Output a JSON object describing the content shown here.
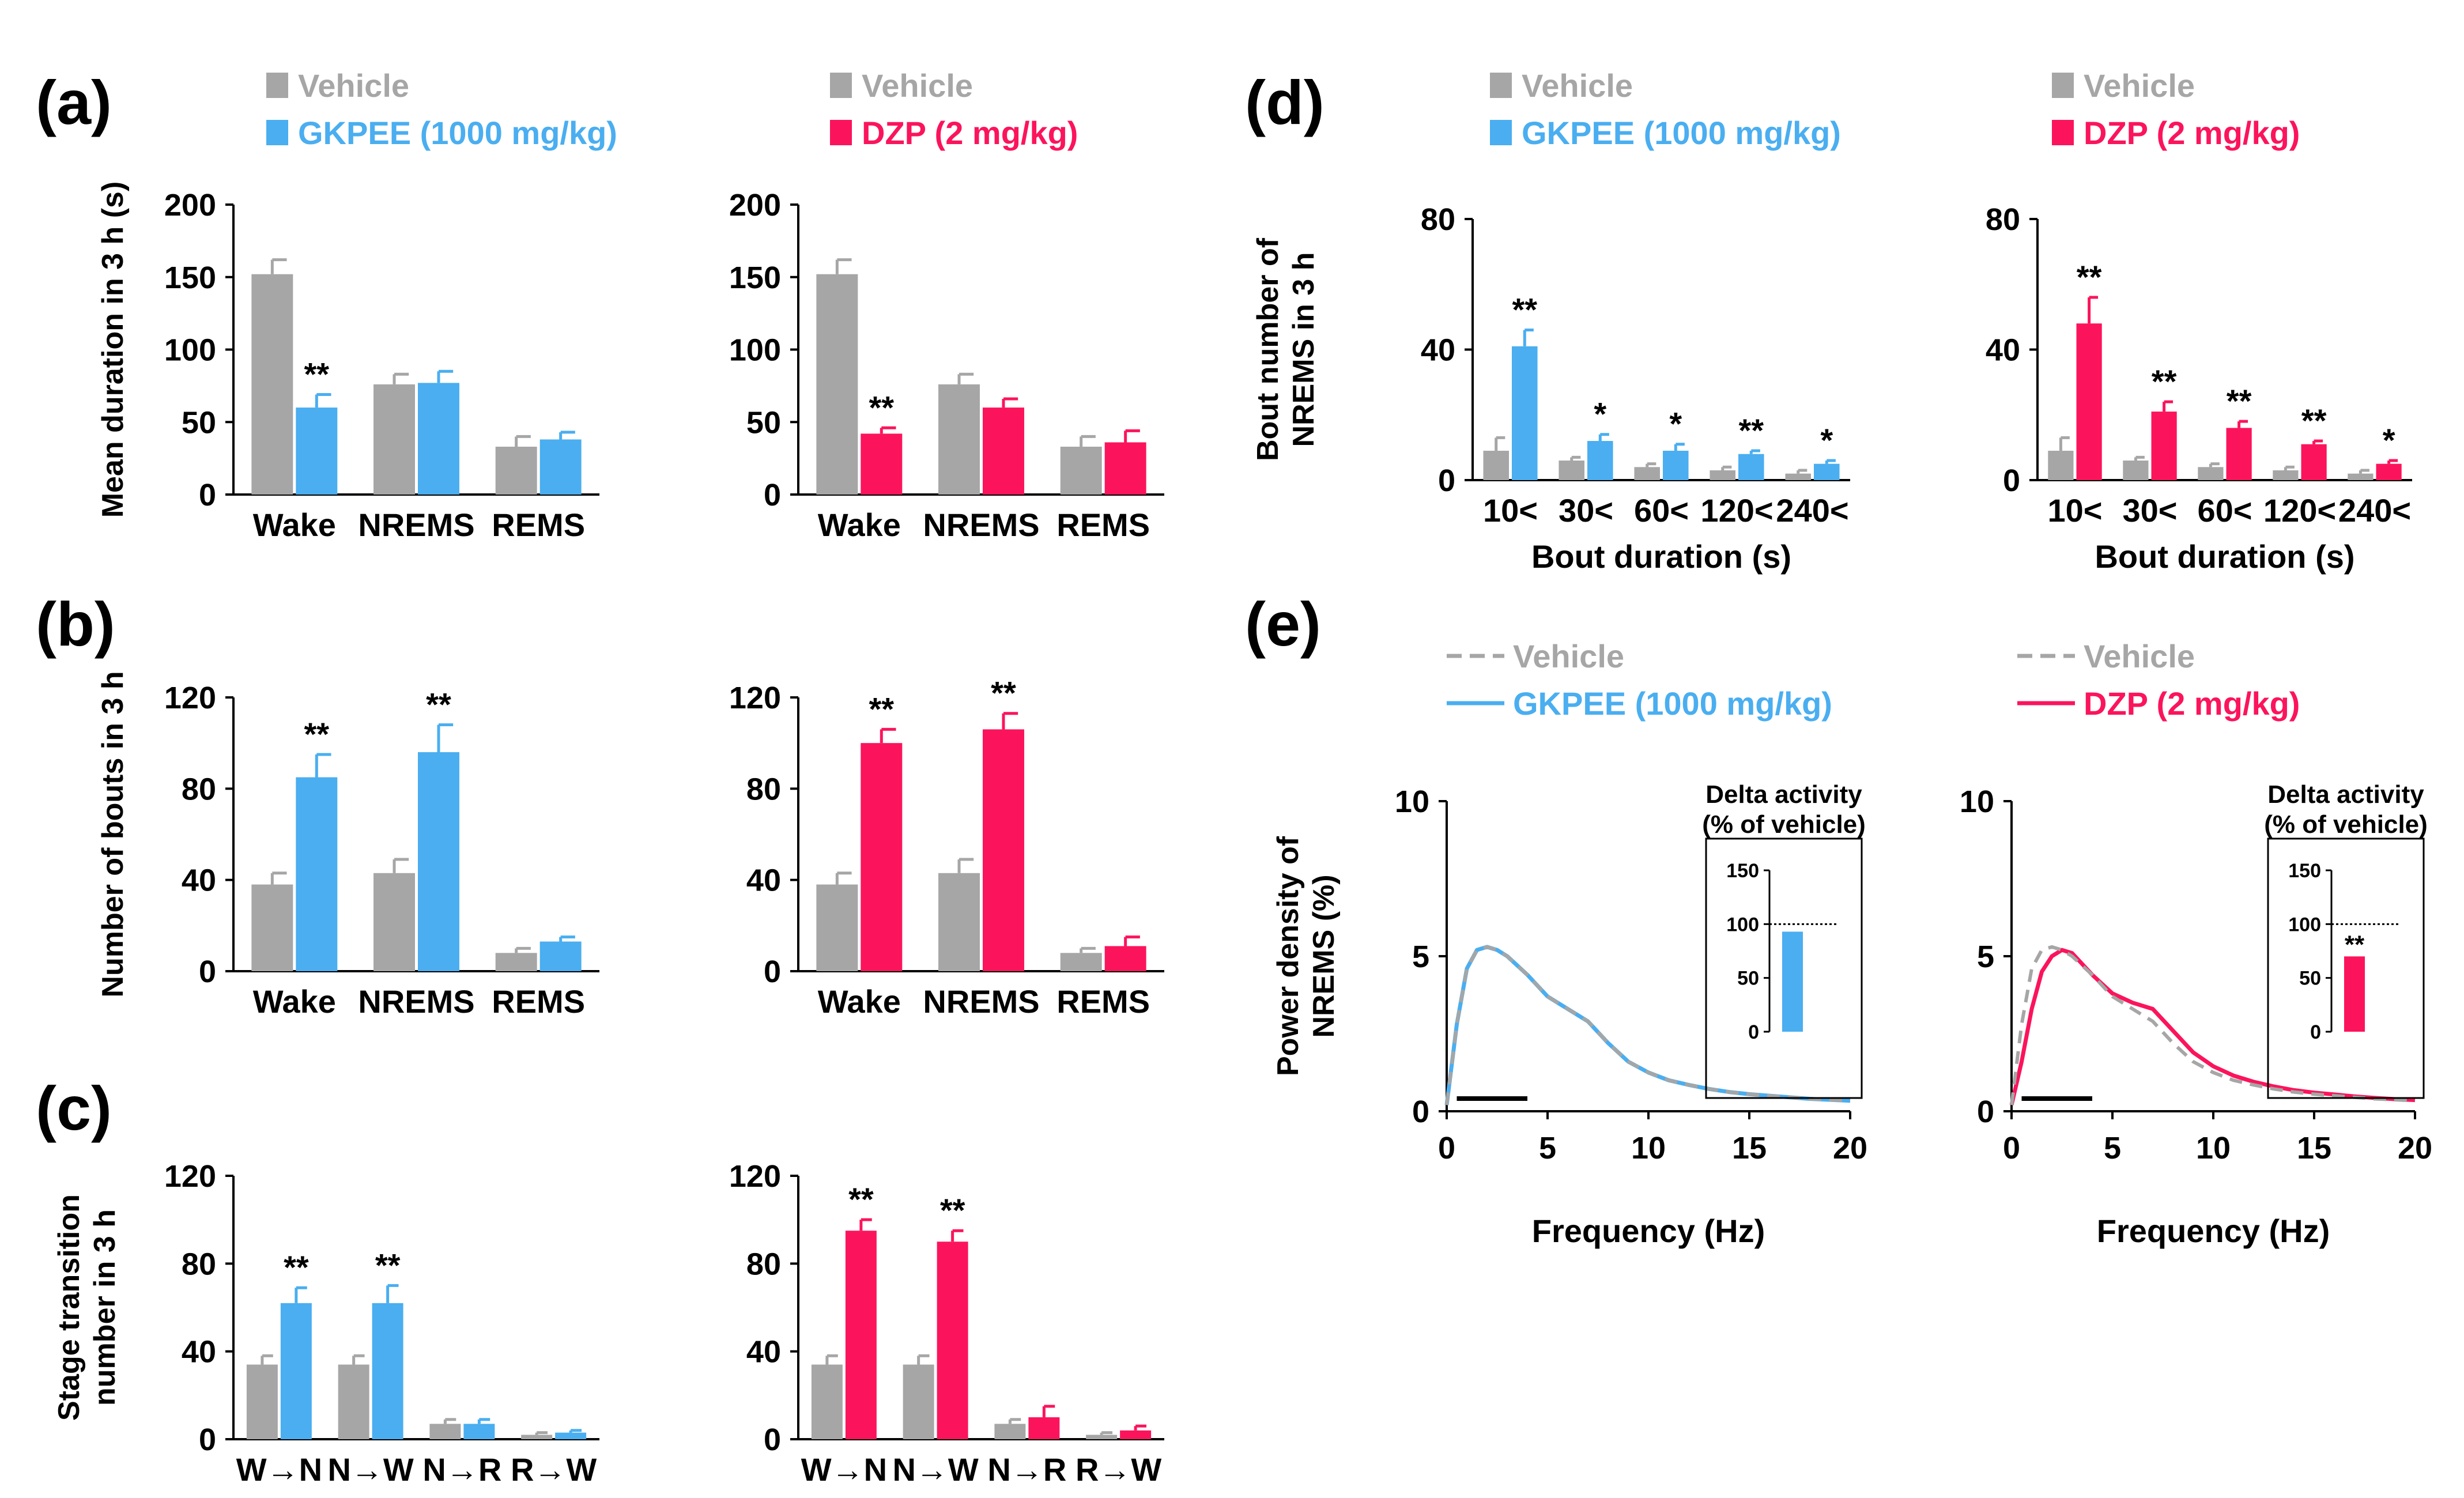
{
  "colors": {
    "vehicle": "#a6a6a6",
    "gkpee": "#4aaef0",
    "dzp": "#fb145c",
    "text": "#000000"
  },
  "panel_labels": {
    "a": "(a)",
    "b": "(b)",
    "c": "(c)",
    "d": "(d)",
    "e": "(e)"
  },
  "legend": {
    "vehicle": "Vehicle",
    "gkpee": "GKPEE (1000 mg/kg)",
    "dzp": "DZP (2 mg/kg)"
  },
  "chart_data": [
    {
      "id": "a_left",
      "type": "bar",
      "panel": "(a)",
      "ylabel": "Mean duration in 3 h (s)",
      "xlabel": "",
      "ylim": [
        0,
        200
      ],
      "yticks": [
        0,
        50,
        100,
        150,
        200
      ],
      "categories": [
        "Wake",
        "NREMS",
        "REMS"
      ],
      "series": [
        {
          "name": "Vehicle",
          "color": "vehicle",
          "values": [
            152,
            76,
            33
          ],
          "errors": [
            10,
            7,
            7
          ]
        },
        {
          "name": "GKPEE (1000 mg/kg)",
          "color": "gkpee",
          "values": [
            60,
            77,
            38
          ],
          "errors": [
            9,
            8,
            5
          ]
        }
      ],
      "annotations": [
        "**",
        "",
        ""
      ]
    },
    {
      "id": "a_right",
      "type": "bar",
      "panel": "(a)",
      "ylabel": "",
      "xlabel": "",
      "ylim": [
        0,
        200
      ],
      "yticks": [
        0,
        50,
        100,
        150,
        200
      ],
      "categories": [
        "Wake",
        "NREMS",
        "REMS"
      ],
      "series": [
        {
          "name": "Vehicle",
          "color": "vehicle",
          "values": [
            152,
            76,
            33
          ],
          "errors": [
            10,
            7,
            7
          ]
        },
        {
          "name": "DZP (2 mg/kg)",
          "color": "dzp",
          "values": [
            42,
            60,
            36
          ],
          "errors": [
            4,
            6,
            8
          ]
        }
      ],
      "annotations": [
        "**",
        "",
        ""
      ]
    },
    {
      "id": "b_left",
      "type": "bar",
      "panel": "(b)",
      "ylabel": "Number of bouts in 3 h",
      "xlabel": "",
      "ylim": [
        0,
        120
      ],
      "yticks": [
        0,
        40,
        80,
        120
      ],
      "categories": [
        "Wake",
        "NREMS",
        "REMS"
      ],
      "series": [
        {
          "name": "Vehicle",
          "color": "vehicle",
          "values": [
            38,
            43,
            8
          ],
          "errors": [
            5,
            6,
            2
          ]
        },
        {
          "name": "GKPEE (1000 mg/kg)",
          "color": "gkpee",
          "values": [
            85,
            96,
            13
          ],
          "errors": [
            10,
            12,
            2
          ]
        }
      ],
      "annotations": [
        "**",
        "**",
        ""
      ]
    },
    {
      "id": "b_right",
      "type": "bar",
      "panel": "(b)",
      "ylabel": "",
      "xlabel": "",
      "ylim": [
        0,
        120
      ],
      "yticks": [
        0,
        40,
        80,
        120
      ],
      "categories": [
        "Wake",
        "NREMS",
        "REMS"
      ],
      "series": [
        {
          "name": "Vehicle",
          "color": "vehicle",
          "values": [
            38,
            43,
            8
          ],
          "errors": [
            5,
            6,
            2
          ]
        },
        {
          "name": "DZP (2 mg/kg)",
          "color": "dzp",
          "values": [
            100,
            106,
            11
          ],
          "errors": [
            6,
            7,
            4
          ]
        }
      ],
      "annotations": [
        "**",
        "**",
        ""
      ]
    },
    {
      "id": "c_left",
      "type": "bar",
      "panel": "(c)",
      "ylabel": "Stage transition|number in 3 h",
      "xlabel": "",
      "ylim": [
        0,
        120
      ],
      "yticks": [
        0,
        40,
        80,
        120
      ],
      "categories": [
        "W→N",
        "N→W",
        "N→R",
        "R→W"
      ],
      "series": [
        {
          "name": "Vehicle",
          "color": "vehicle",
          "values": [
            34,
            34,
            7,
            2
          ],
          "errors": [
            4,
            4,
            2,
            1
          ]
        },
        {
          "name": "GKPEE (1000 mg/kg)",
          "color": "gkpee",
          "values": [
            62,
            62,
            7,
            3
          ],
          "errors": [
            7,
            8,
            2,
            1
          ]
        }
      ],
      "annotations": [
        "**",
        "**",
        "",
        ""
      ]
    },
    {
      "id": "c_right",
      "type": "bar",
      "panel": "(c)",
      "ylabel": "",
      "xlabel": "",
      "ylim": [
        0,
        120
      ],
      "yticks": [
        0,
        40,
        80,
        120
      ],
      "categories": [
        "W→N",
        "N→W",
        "N→R",
        "R→W"
      ],
      "series": [
        {
          "name": "Vehicle",
          "color": "vehicle",
          "values": [
            34,
            34,
            7,
            2
          ],
          "errors": [
            4,
            4,
            2,
            1
          ]
        },
        {
          "name": "DZP (2 mg/kg)",
          "color": "dzp",
          "values": [
            95,
            90,
            10,
            4
          ],
          "errors": [
            5,
            5,
            5,
            2
          ]
        }
      ],
      "annotations": [
        "**",
        "**",
        "",
        ""
      ]
    },
    {
      "id": "d_left",
      "type": "bar",
      "panel": "(d)",
      "ylabel": "Bout number of|NREMS in 3 h",
      "xlabel": "Bout duration (s)",
      "ylim": [
        0,
        80
      ],
      "yticks": [
        0,
        40,
        80
      ],
      "categories": [
        "10<",
        "30<",
        "60<",
        "120<",
        "240<"
      ],
      "series": [
        {
          "name": "Vehicle",
          "color": "vehicle",
          "values": [
            9,
            6,
            4,
            3,
            2
          ],
          "errors": [
            4,
            1,
            1,
            1,
            1
          ]
        },
        {
          "name": "GKPEE (1000 mg/kg)",
          "color": "gkpee",
          "values": [
            41,
            12,
            9,
            8,
            5
          ],
          "errors": [
            5,
            2,
            2,
            1,
            1
          ]
        }
      ],
      "annotations": [
        "**",
        "*",
        "*",
        "**",
        "*"
      ]
    },
    {
      "id": "d_right",
      "type": "bar",
      "panel": "(d)",
      "ylabel": "",
      "xlabel": "Bout duration (s)",
      "ylim": [
        0,
        80
      ],
      "yticks": [
        0,
        40,
        80
      ],
      "categories": [
        "10<",
        "30<",
        "60<",
        "120<",
        "240<"
      ],
      "series": [
        {
          "name": "Vehicle",
          "color": "vehicle",
          "values": [
            9,
            6,
            4,
            3,
            2
          ],
          "errors": [
            4,
            1,
            1,
            1,
            1
          ]
        },
        {
          "name": "DZP (2 mg/kg)",
          "color": "dzp",
          "values": [
            48,
            21,
            16,
            11,
            5
          ],
          "errors": [
            8,
            3,
            2,
            1,
            1
          ]
        }
      ],
      "annotations": [
        "**",
        "**",
        "**",
        "**",
        "*"
      ]
    },
    {
      "id": "e_left",
      "type": "line",
      "panel": "(e)",
      "ylabel": "Power density of|NREMS (%)",
      "xlabel": "Frequency (Hz)",
      "xlim": [
        0,
        20
      ],
      "ylim": [
        0,
        10
      ],
      "xticks": [
        0,
        5,
        10,
        15,
        20
      ],
      "yticks": [
        0,
        5,
        10
      ],
      "delta_band_hz": [
        0.5,
        4
      ],
      "series": [
        {
          "name": "Vehicle",
          "color": "vehicle",
          "style": "dashed",
          "x": [
            0,
            0.5,
            1,
            1.5,
            2,
            2.5,
            3,
            4,
            5,
            6,
            7,
            8,
            9,
            10,
            11,
            12,
            13,
            14,
            15,
            16,
            17,
            18,
            19,
            20
          ],
          "y": [
            0.2,
            2.8,
            4.6,
            5.2,
            5.3,
            5.2,
            5.0,
            4.4,
            3.7,
            3.3,
            2.9,
            2.2,
            1.6,
            1.25,
            1.0,
            0.85,
            0.72,
            0.62,
            0.55,
            0.5,
            0.45,
            0.4,
            0.37,
            0.34
          ]
        },
        {
          "name": "GKPEE (1000 mg/kg)",
          "color": "gkpee",
          "style": "solid",
          "x": [
            0,
            0.5,
            1,
            1.5,
            2,
            2.5,
            3,
            4,
            5,
            6,
            7,
            8,
            9,
            10,
            11,
            12,
            13,
            14,
            15,
            16,
            17,
            18,
            19,
            20
          ],
          "y": [
            0.2,
            2.8,
            4.6,
            5.2,
            5.3,
            5.2,
            5.0,
            4.4,
            3.7,
            3.3,
            2.9,
            2.2,
            1.6,
            1.25,
            1.0,
            0.85,
            0.72,
            0.62,
            0.55,
            0.5,
            0.45,
            0.4,
            0.37,
            0.34
          ]
        }
      ],
      "inset": {
        "title": "Delta activity|(% of vehicle)",
        "ylim": [
          0,
          150
        ],
        "yticks": [
          0,
          50,
          100,
          150
        ],
        "reference": 100,
        "value": 93,
        "color": "gkpee",
        "annotation": ""
      }
    },
    {
      "id": "e_right",
      "type": "line",
      "panel": "(e)",
      "ylabel": "",
      "xlabel": "Frequency (Hz)",
      "xlim": [
        0,
        20
      ],
      "ylim": [
        0,
        10
      ],
      "xticks": [
        0,
        5,
        10,
        15,
        20
      ],
      "yticks": [
        0,
        5,
        10
      ],
      "delta_band_hz": [
        0.5,
        4
      ],
      "series": [
        {
          "name": "Vehicle",
          "color": "vehicle",
          "style": "dashed",
          "x": [
            0,
            0.5,
            1,
            1.5,
            2,
            2.5,
            3,
            4,
            5,
            6,
            7,
            8,
            9,
            10,
            11,
            12,
            13,
            14,
            15,
            16,
            17,
            18,
            19,
            20
          ],
          "y": [
            0.2,
            2.8,
            4.6,
            5.2,
            5.3,
            5.2,
            5.0,
            4.4,
            3.7,
            3.3,
            2.9,
            2.2,
            1.6,
            1.25,
            1.0,
            0.85,
            0.72,
            0.62,
            0.55,
            0.5,
            0.45,
            0.4,
            0.37,
            0.34
          ]
        },
        {
          "name": "DZP (2 mg/kg)",
          "color": "dzp",
          "style": "solid",
          "x": [
            0,
            0.5,
            1,
            1.5,
            2,
            2.5,
            3,
            4,
            5,
            6,
            7,
            8,
            9,
            10,
            11,
            12,
            13,
            14,
            15,
            16,
            17,
            18,
            19,
            20
          ],
          "y": [
            0.2,
            1.6,
            3.3,
            4.5,
            5.0,
            5.2,
            5.1,
            4.4,
            3.8,
            3.5,
            3.3,
            2.6,
            1.9,
            1.45,
            1.15,
            0.95,
            0.8,
            0.68,
            0.6,
            0.54,
            0.48,
            0.43,
            0.39,
            0.36
          ]
        }
      ],
      "inset": {
        "title": "Delta activity|(% of vehicle)",
        "ylim": [
          0,
          150
        ],
        "yticks": [
          0,
          50,
          100,
          150
        ],
        "reference": 100,
        "value": 70,
        "color": "dzp",
        "annotation": "**"
      }
    }
  ]
}
